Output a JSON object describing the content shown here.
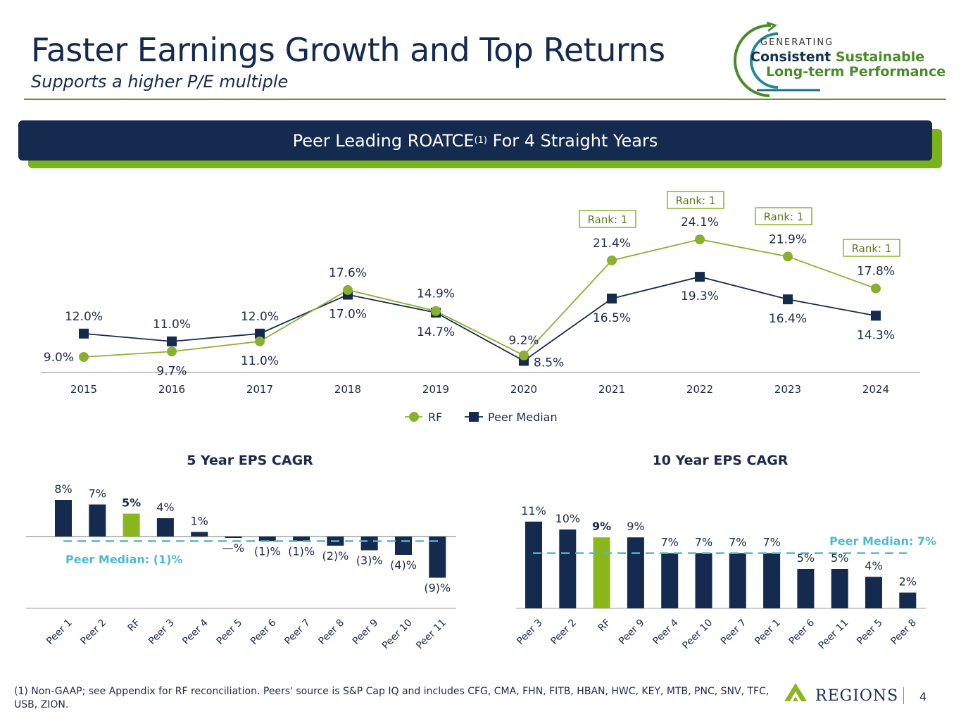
{
  "header": {
    "title": "Faster Earnings Growth and Top Returns",
    "subtitle": "Supports a higher P/E multiple"
  },
  "logo": {
    "generating": "GENERATING",
    "word1": "Consistent",
    "word2": "Sustainable",
    "line2": "Long-term Performance"
  },
  "banner": {
    "text_before": "Peer Leading ROATCE",
    "sup": "(1)",
    "text_after": " For 4 Straight Years"
  },
  "colors": {
    "navy": "#142a4e",
    "green": "#8ab030",
    "bar_green": "#8ab71c",
    "median_line": "#4fb8cf"
  },
  "chart_data": [
    {
      "type": "line",
      "title": "Peer Leading ROATCE(1) For 4 Straight Years",
      "x": [
        "2015",
        "2016",
        "2017",
        "2018",
        "2019",
        "2020",
        "2021",
        "2022",
        "2023",
        "2024"
      ],
      "series": [
        {
          "name": "RF",
          "values": [
            9.0,
            9.7,
            11.0,
            17.6,
            14.9,
            9.2,
            21.4,
            24.1,
            21.9,
            17.8
          ],
          "labels": [
            "9.0%",
            "9.7%",
            "11.0%",
            "17.6%",
            "14.9%",
            "9.2%",
            "21.4%",
            "24.1%",
            "21.9%",
            "17.8%"
          ]
        },
        {
          "name": "Peer Median",
          "values": [
            12.0,
            11.0,
            12.0,
            17.0,
            14.7,
            8.5,
            16.5,
            19.3,
            16.4,
            14.3
          ],
          "labels": [
            "12.0%",
            "11.0%",
            "12.0%",
            "17.0%",
            "14.7%",
            "8.5%",
            "16.5%",
            "19.3%",
            "16.4%",
            "14.3%"
          ]
        }
      ],
      "annotations": [
        "Rank: 1",
        "Rank: 1",
        "Rank: 1",
        "Rank: 1"
      ],
      "annotation_years": [
        "2021",
        "2022",
        "2023",
        "2024"
      ],
      "legend": [
        "RF",
        "Peer Median"
      ]
    },
    {
      "type": "bar",
      "title": "5 Year EPS CAGR",
      "categories": [
        "Peer 1",
        "Peer 2",
        "RF",
        "Peer 3",
        "Peer 4",
        "Peer 5",
        "Peer 6",
        "Peer 7",
        "Peer 8",
        "Peer 9",
        "Peer 10",
        "Peer 11"
      ],
      "values": [
        8,
        7,
        5,
        4,
        1,
        -0.3,
        -1,
        -1,
        -2,
        -3,
        -4,
        -9
      ],
      "labels": [
        "8%",
        "7%",
        "5%",
        "4%",
        "1%",
        "—%",
        "(1)%",
        "(1)%",
        "(2)%",
        "(3)%",
        "(4)%",
        "(9)%"
      ],
      "highlight": "RF",
      "median_label": "Peer Median: (1)%",
      "median_value": -1,
      "ylim": [
        -15,
        12
      ]
    },
    {
      "type": "bar",
      "title": "10 Year EPS CAGR",
      "categories": [
        "Peer 3",
        "Peer 2",
        "RF",
        "Peer 9",
        "Peer 4",
        "Peer 10",
        "Peer 7",
        "Peer 1",
        "Peer 6",
        "Peer 11",
        "Peer 5",
        "Peer 8"
      ],
      "values": [
        11,
        10,
        9,
        9,
        7,
        7,
        7,
        7,
        5,
        5,
        4,
        2
      ],
      "labels": [
        "11%",
        "10%",
        "9%",
        "9%",
        "7%",
        "7%",
        "7%",
        "7%",
        "5%",
        "5%",
        "4%",
        "2%"
      ],
      "highlight": "RF",
      "median_label": "Peer Median: 7%",
      "median_value": 7,
      "ylim": [
        0,
        12
      ]
    }
  ],
  "footer": {
    "footnote": "(1) Non-GAAP; see Appendix for RF reconciliation. Peers' source is S&P Cap IQ and includes CFG, CMA, FHN, FITB, HBAN, HWC, KEY, MTB, PNC, SNV, TFC, USB, ZION.",
    "brand": "REGIONS",
    "page_number": "4"
  }
}
